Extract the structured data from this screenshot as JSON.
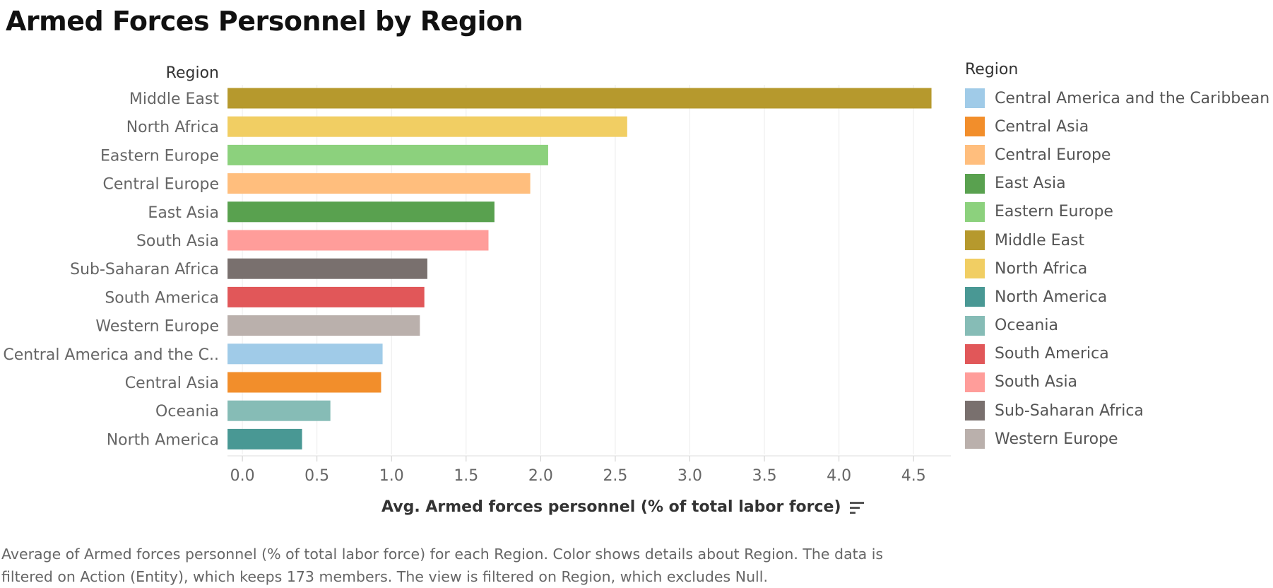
{
  "page": {
    "title": "Armed Forces Personnel by Region"
  },
  "chart_data": {
    "type": "bar",
    "orientation": "horizontal",
    "title": "Armed Forces Personnel by Region",
    "ylabel": "Region",
    "xlabel": "Avg. Armed forces personnel (% of total labor force)",
    "xlim": [
      -0.1,
      4.75
    ],
    "xticks": [
      "0.0",
      "0.5",
      "1.0",
      "1.5",
      "2.0",
      "2.5",
      "3.0",
      "3.5",
      "4.0",
      "4.5"
    ],
    "categories": [
      "Middle East",
      "North Africa",
      "Eastern Europe",
      "Central Europe",
      "East Asia",
      "South Asia",
      "Sub-Saharan Africa",
      "South America",
      "Western Europe",
      "Central America and the C..",
      "Central Asia",
      "Oceania",
      "North America"
    ],
    "values": [
      4.62,
      2.58,
      2.05,
      1.93,
      1.69,
      1.65,
      1.24,
      1.22,
      1.19,
      0.94,
      0.93,
      0.59,
      0.4
    ],
    "colors": [
      "#b6992d",
      "#f1ce63",
      "#8cd17d",
      "#ffbe7d",
      "#59a14f",
      "#ff9d9a",
      "#79706e",
      "#e15759",
      "#bab0ac",
      "#a0cbe8",
      "#f28e2b",
      "#86bcb6",
      "#499894"
    ],
    "grid": true,
    "legend_position": "right"
  },
  "legend": {
    "title": "Region",
    "items": [
      {
        "label": "Central America and the Caribbean",
        "color": "#a0cbe8"
      },
      {
        "label": "Central Asia",
        "color": "#f28e2b"
      },
      {
        "label": "Central Europe",
        "color": "#ffbe7d"
      },
      {
        "label": "East Asia",
        "color": "#59a14f"
      },
      {
        "label": "Eastern Europe",
        "color": "#8cd17d"
      },
      {
        "label": "Middle East",
        "color": "#b6992d"
      },
      {
        "label": "North Africa",
        "color": "#f1ce63"
      },
      {
        "label": "North America",
        "color": "#499894"
      },
      {
        "label": "Oceania",
        "color": "#86bcb6"
      },
      {
        "label": "South America",
        "color": "#e15759"
      },
      {
        "label": "South Asia",
        "color": "#ff9d9a"
      },
      {
        "label": "Sub-Saharan Africa",
        "color": "#79706e"
      },
      {
        "label": "Western Europe",
        "color": "#bab0ac"
      }
    ]
  },
  "caption": "Average of Armed forces personnel (% of total labor force) for each Region.  Color shows details about Region. The data is filtered on Action (Entity), which keeps 173 members. The view is filtered on Region, which excludes Null."
}
